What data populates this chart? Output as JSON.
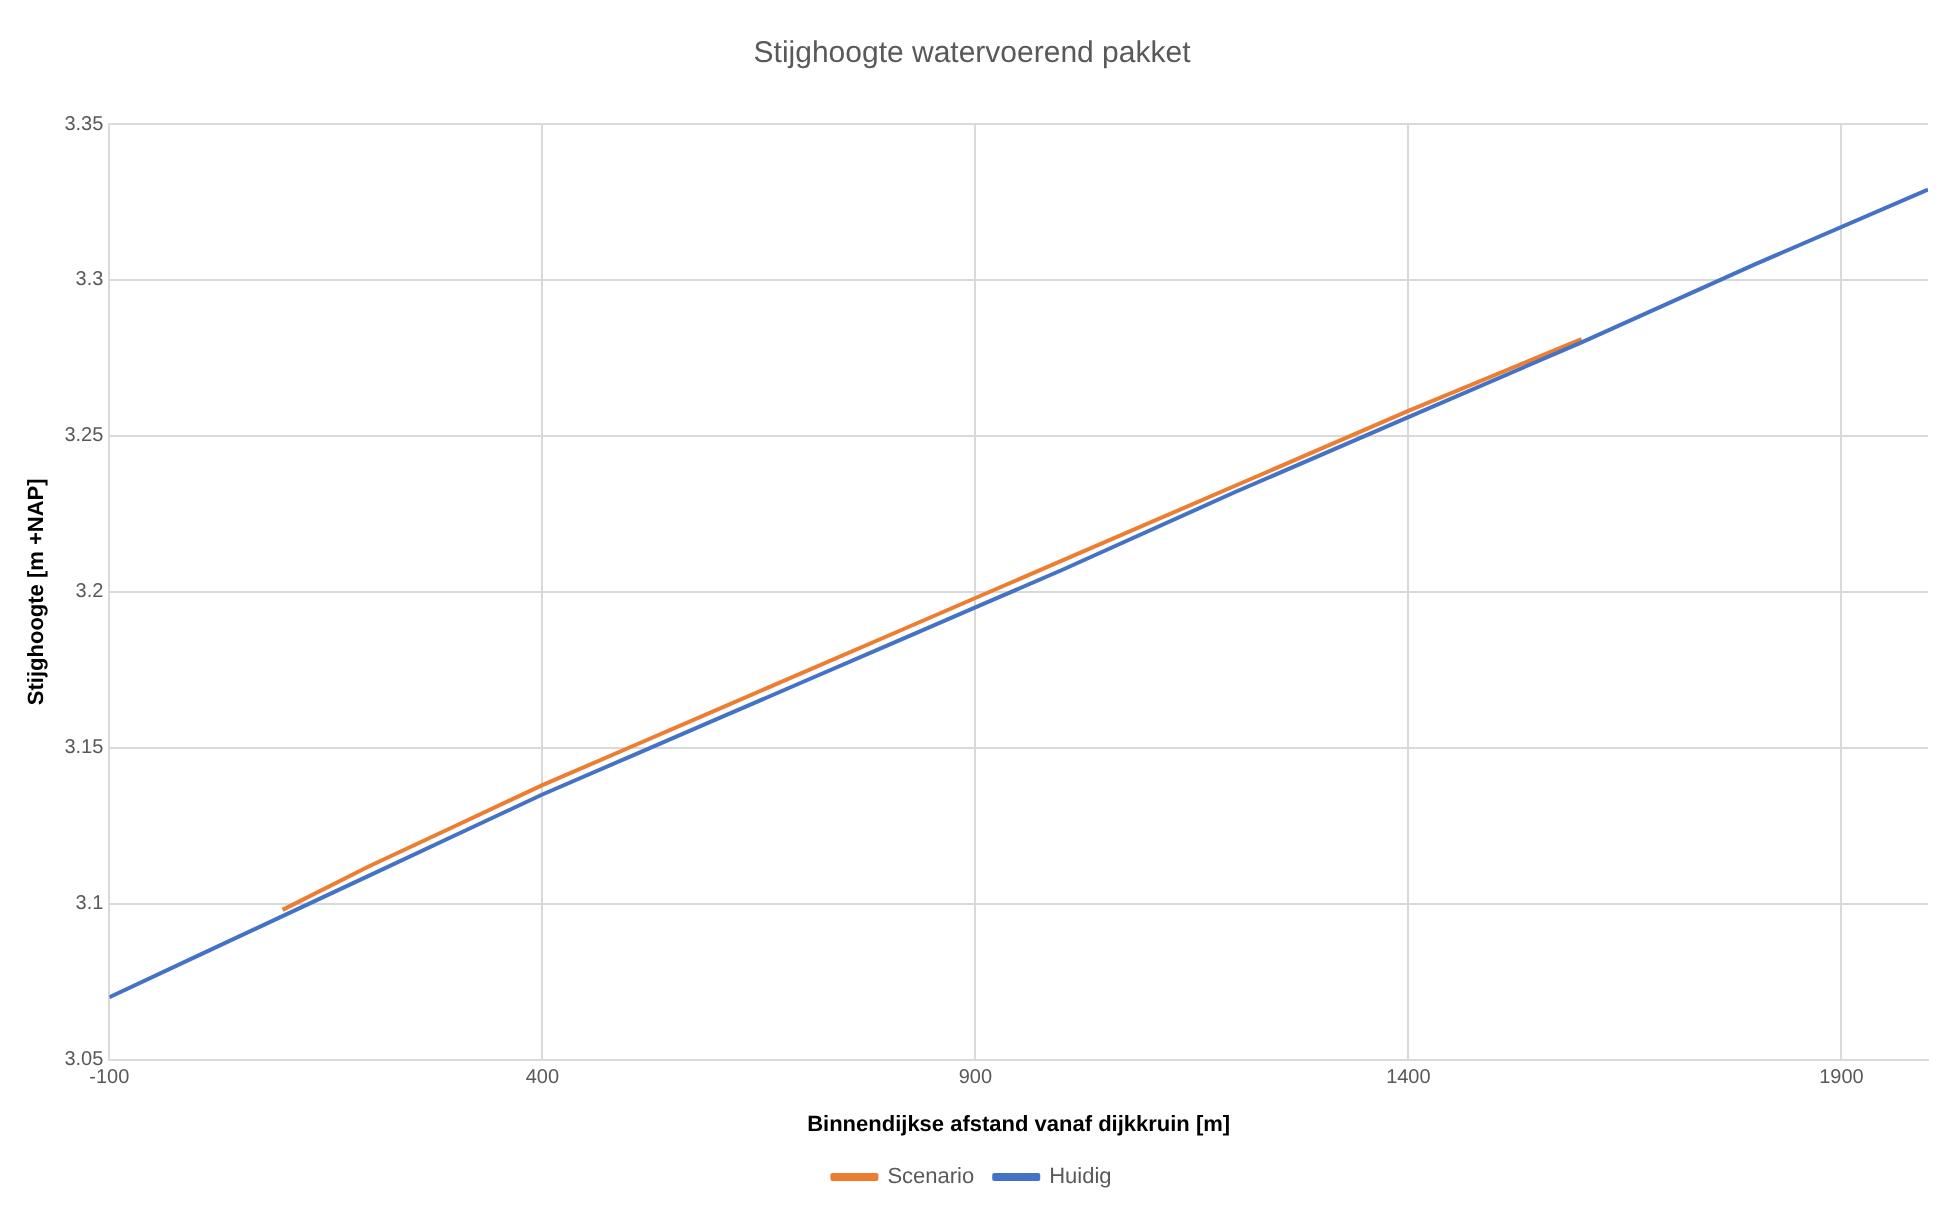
{
  "chart_data": {
    "type": "line",
    "title": "Stijghoogte watervoerend pakket",
    "xlabel": "Binnendijkse afstand vanaf dijkkruin [m]",
    "ylabel": "Stijghoogte [m +NAP]",
    "x": [
      -100,
      0,
      100,
      200,
      300,
      400,
      500,
      600,
      700,
      800,
      900,
      1000,
      1200,
      1400,
      1600,
      1800,
      2000
    ],
    "series": [
      {
        "name": "Scenario",
        "color": "#ed7d31",
        "values": [
          null,
          null,
          3.098,
          3.112,
          3.125,
          3.138,
          3.15,
          3.162,
          3.174,
          3.186,
          3.198,
          3.21,
          3.234,
          3.258,
          3.281,
          null,
          null
        ]
      },
      {
        "name": "Huidig",
        "color": "#4472c4",
        "values": [
          3.07,
          3.083,
          3.096,
          3.109,
          3.122,
          3.135,
          3.147,
          3.159,
          3.171,
          3.183,
          3.195,
          3.207,
          3.232,
          3.256,
          3.28,
          3.305,
          3.329
        ]
      }
    ],
    "xlim": [
      -100,
      2000
    ],
    "xticks": [
      -100,
      400,
      900,
      1400,
      1900
    ],
    "ylim": [
      3.05,
      3.35
    ],
    "yticks": [
      3.05,
      3.1,
      3.15,
      3.2,
      3.25,
      3.3,
      3.35
    ],
    "grid": true,
    "legend": "bottom",
    "marker": "none",
    "line_style": "solid"
  }
}
